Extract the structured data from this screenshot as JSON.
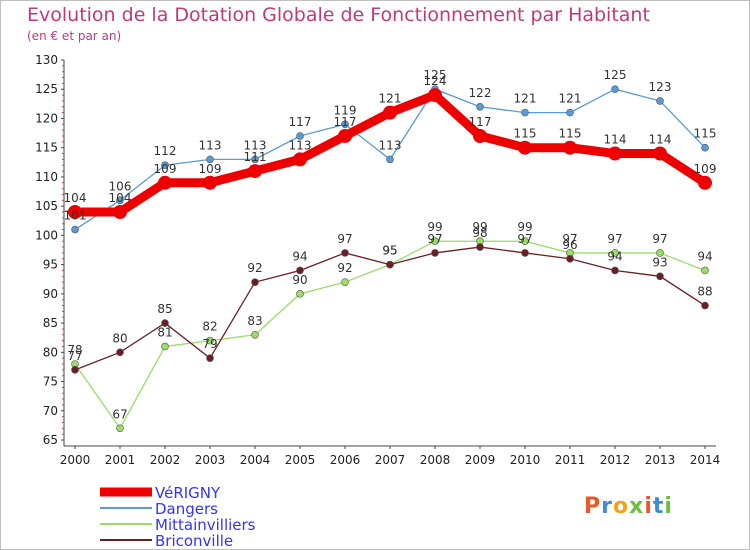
{
  "header": {
    "title": "Evolution de la Dotation Globale de Fonctionnement par Habitant",
    "subtitle": "(en € et par an)"
  },
  "logo": {
    "text": "Proxiti",
    "colors": [
      "#e8582c",
      "#3b8fd6",
      "#f2a31a",
      "#6cbf3c",
      "#e8582c",
      "#3b8fd6",
      "#6cbf3c"
    ]
  },
  "chart_data": {
    "type": "line",
    "title": "Evolution de la Dotation Globale de Fonctionnement par Habitant",
    "subtitle": "(en € et par an)",
    "xlabel": "",
    "ylabel": "",
    "x": [
      "2000",
      "2001",
      "2002",
      "2003",
      "2004",
      "2005",
      "2006",
      "2007",
      "2008",
      "2009",
      "2010",
      "2011",
      "2012",
      "2013",
      "2014"
    ],
    "ylim": [
      65,
      130
    ],
    "yticks": [
      65,
      70,
      75,
      80,
      85,
      90,
      95,
      100,
      105,
      110,
      115,
      120,
      125,
      130
    ],
    "grid": false,
    "legend_position": "bottom-left",
    "series": [
      {
        "name": "VéRIGNY",
        "color": "#ee0000",
        "values": [
          104,
          104,
          109,
          109,
          111,
          113,
          117,
          121,
          124,
          117,
          115,
          115,
          114,
          114,
          109
        ],
        "emphasis": true
      },
      {
        "name": "Dangers",
        "color": "#5b9bd5",
        "values": [
          101,
          106,
          112,
          113,
          113,
          117,
          119,
          113,
          125,
          122,
          121,
          121,
          125,
          123,
          115
        ]
      },
      {
        "name": "Mittainvilliers",
        "color": "#99dd66",
        "values": [
          78,
          67,
          81,
          82,
          83,
          90,
          92,
          95,
          99,
          99,
          99,
          97,
          97,
          97,
          94
        ]
      },
      {
        "name": "Briconville",
        "color": "#6b1f24",
        "values": [
          77,
          80,
          85,
          79,
          92,
          94,
          97,
          95,
          97,
          98,
          97,
          96,
          94,
          93,
          88
        ]
      }
    ]
  }
}
